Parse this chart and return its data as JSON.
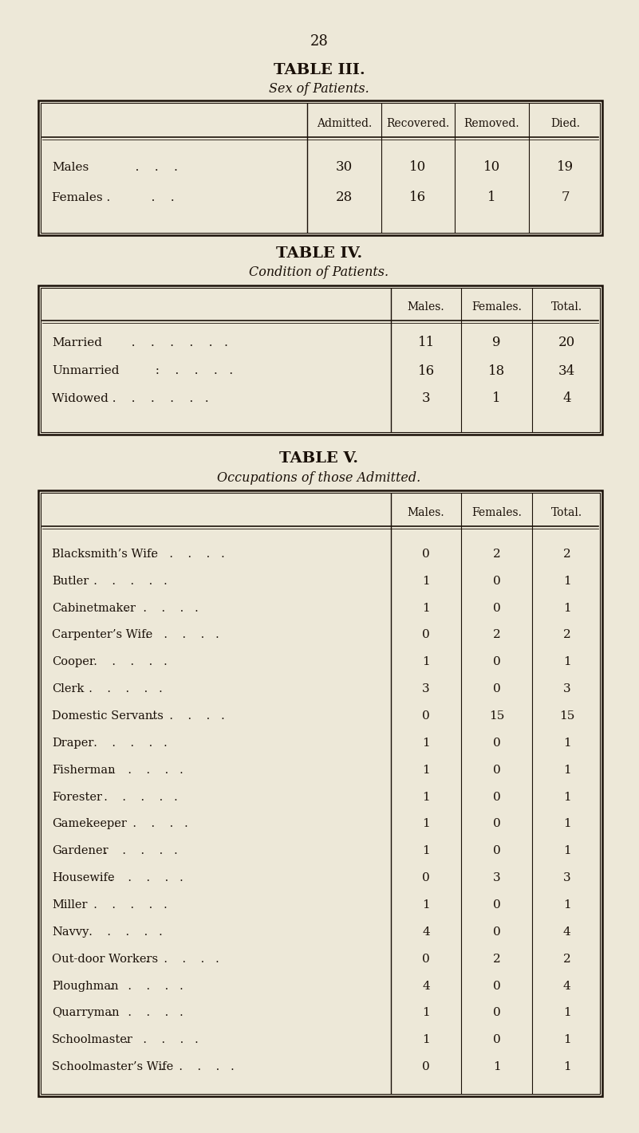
{
  "bg_color": "#ede8d8",
  "text_color": "#1a1008",
  "page_number": "28",
  "table3": {
    "title": "TABLE III.",
    "subtitle": "Sex of Patients.",
    "col_headers": [
      "Admitted.",
      "Recovered.",
      "Removed.",
      "Died."
    ],
    "row_labels": [
      "Males",
      "Females ."
    ],
    "row_dots": [
      "   .    .    .",
      "   .    ."
    ],
    "values": [
      [
        30,
        10,
        10,
        19
      ],
      [
        28,
        16,
        1,
        7
      ]
    ]
  },
  "table4": {
    "title": "TABLE IV.",
    "subtitle": "Condition of Patients.",
    "col_headers": [
      "Males.",
      "Females.",
      "Total."
    ],
    "row_labels": [
      "Married",
      "Unmarried",
      "Widowed ."
    ],
    "row_dots": [
      "  .    .    .    .    .   .",
      "  :    .    .    .   .",
      "  .    .    .    .   ."
    ],
    "values": [
      [
        11,
        9,
        20
      ],
      [
        16,
        18,
        34
      ],
      [
        3,
        1,
        4
      ]
    ]
  },
  "table5": {
    "title": "TABLE V.",
    "subtitle": "Occupations of those Admitted.",
    "col_headers": [
      "Males.",
      "Females.",
      "Total."
    ],
    "row_labels": [
      "Blacksmith’s Wife",
      "Butler",
      "Cabinetmaker",
      "Carpenter’s Wife",
      "Cooper",
      "Clerk",
      "Domestic Servants",
      "Draper",
      "Fisherman",
      "Forester",
      "Gamekeeper",
      "Gardener",
      "Housewife",
      "Miller",
      "Navvy",
      "Out-door Workers",
      "Ploughman",
      "Quarryman",
      "Schoolmaster",
      "Schoolmaster’s Wife"
    ],
    "values": [
      [
        0,
        2,
        2
      ],
      [
        1,
        0,
        1
      ],
      [
        1,
        0,
        1
      ],
      [
        0,
        2,
        2
      ],
      [
        1,
        0,
        1
      ],
      [
        3,
        0,
        3
      ],
      [
        0,
        15,
        15
      ],
      [
        1,
        0,
        1
      ],
      [
        1,
        0,
        1
      ],
      [
        1,
        0,
        1
      ],
      [
        1,
        0,
        1
      ],
      [
        1,
        0,
        1
      ],
      [
        0,
        3,
        3
      ],
      [
        1,
        0,
        1
      ],
      [
        4,
        0,
        4
      ],
      [
        0,
        2,
        2
      ],
      [
        4,
        0,
        4
      ],
      [
        1,
        0,
        1
      ],
      [
        1,
        0,
        1
      ],
      [
        0,
        1,
        1
      ]
    ]
  }
}
